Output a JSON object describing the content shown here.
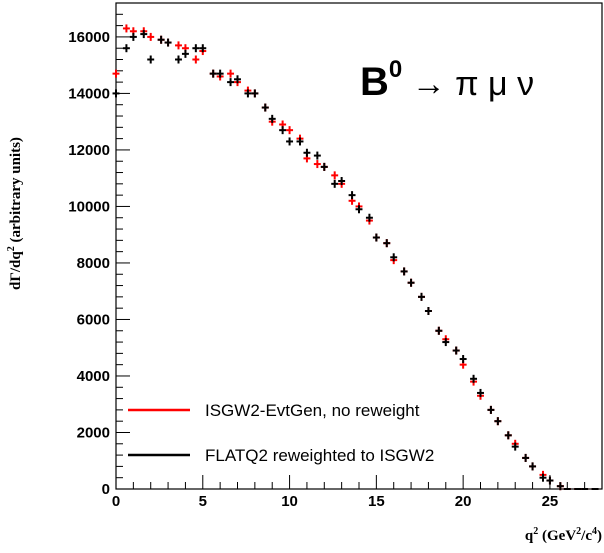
{
  "chart_data": {
    "type": "scatter",
    "xlabel": "q",
    "xlabel_sup1": "2",
    "xlabel_unit_open": " (GeV",
    "xlabel_sup2": "2",
    "xlabel_unit_mid": "/c",
    "xlabel_sup3": "4",
    "xlabel_unit_close": ")",
    "ylabel": "dΓ/dq",
    "ylabel_sup": "2",
    "ylabel_unit": " (arbitrary units)",
    "annotation": {
      "base": "B",
      "sup": "0",
      "rest": " → π μ ν"
    },
    "xlim": [
      0,
      28
    ],
    "ylim": [
      0,
      17200
    ],
    "x_ticks": [
      0,
      5,
      10,
      15,
      20,
      25
    ],
    "x_tick_labels": [
      "0",
      "5",
      "10",
      "15",
      "20",
      "25"
    ],
    "y_ticks": [
      0,
      2000,
      4000,
      6000,
      8000,
      10000,
      12000,
      14000,
      16000
    ],
    "y_tick_labels": [
      "0",
      "2000",
      "4000",
      "6000",
      "8000",
      "10000",
      "12000",
      "14000",
      "16000"
    ],
    "x_error_halfwidth": 0.2,
    "legend": {
      "placement": "bottom-left"
    },
    "series": [
      {
        "name": "ISGW2-EvtGen, no reweight",
        "color": "#ff0000",
        "x": [
          0.0,
          0.6,
          1.0,
          1.6,
          2.0,
          2.6,
          3.0,
          3.6,
          4.0,
          4.6,
          5.0,
          5.6,
          6.0,
          6.6,
          7.0,
          7.6,
          8.0,
          8.6,
          9.0,
          9.6,
          10.0,
          10.6,
          11.0,
          11.6,
          12.0,
          12.6,
          13.0,
          13.6,
          14.0,
          14.6,
          15.0,
          15.6,
          16.0,
          16.6,
          17.0,
          17.6,
          18.0,
          18.6,
          19.0,
          19.6,
          20.0,
          20.6,
          21.0,
          21.6,
          22.0,
          22.6,
          23.0,
          23.6,
          24.0,
          24.6,
          25.0,
          25.6,
          26.0,
          26.6,
          27.0,
          27.6
        ],
        "y": [
          14700,
          16300,
          16200,
          16200,
          16000,
          15900,
          15800,
          15700,
          15600,
          15200,
          15500,
          14700,
          14600,
          14700,
          14400,
          14100,
          14000,
          13500,
          13000,
          12900,
          12700,
          12400,
          11700,
          11500,
          11400,
          11100,
          10800,
          10200,
          10000,
          9500,
          8900,
          8700,
          8100,
          7700,
          7300,
          6800,
          6300,
          5600,
          5300,
          4900,
          4400,
          3800,
          3300,
          2800,
          2400,
          1900,
          1600,
          1100,
          800,
          500,
          300,
          100,
          0,
          0,
          0,
          0
        ]
      },
      {
        "name": "FLATQ2 reweighted to ISGW2",
        "color": "#000000",
        "x": [
          0.0,
          0.6,
          1.0,
          1.6,
          2.0,
          2.6,
          3.0,
          3.6,
          4.0,
          4.6,
          5.0,
          5.6,
          6.0,
          6.6,
          7.0,
          7.6,
          8.0,
          8.6,
          9.0,
          9.6,
          10.0,
          10.6,
          11.0,
          11.6,
          12.0,
          12.6,
          13.0,
          13.6,
          14.0,
          14.6,
          15.0,
          15.6,
          16.0,
          16.6,
          17.0,
          17.6,
          18.0,
          18.6,
          19.0,
          19.6,
          20.0,
          20.6,
          21.0,
          21.6,
          22.0,
          22.6,
          23.0,
          23.6,
          24.0,
          24.6,
          25.0,
          25.6,
          26.0,
          26.6,
          27.0,
          27.6
        ],
        "y": [
          14000,
          15600,
          16000,
          16100,
          15200,
          15900,
          15800,
          15200,
          15400,
          15600,
          15600,
          14700,
          14700,
          14400,
          14500,
          14000,
          14000,
          13500,
          13100,
          12700,
          12300,
          12300,
          11900,
          11800,
          11400,
          10800,
          10900,
          10400,
          9900,
          9600,
          8900,
          8700,
          8200,
          7700,
          7300,
          6800,
          6300,
          5600,
          5200,
          4900,
          4600,
          3900,
          3400,
          2800,
          2400,
          1900,
          1500,
          1100,
          800,
          400,
          300,
          100,
          0,
          0,
          0,
          0
        ]
      }
    ]
  }
}
